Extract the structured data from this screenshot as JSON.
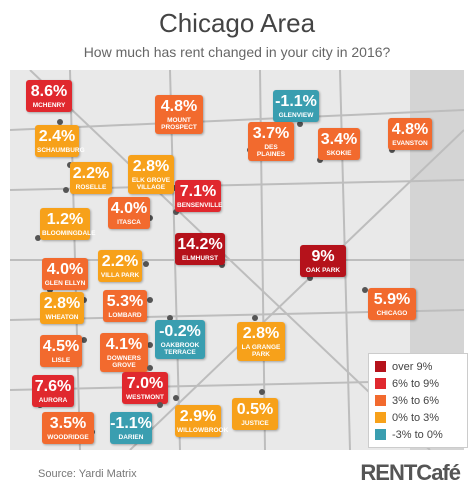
{
  "header": {
    "title": "Chicago Area",
    "subtitle": "How much has rent changed in your city in 2016?"
  },
  "callouts": [
    {
      "value": "8.6%",
      "name": "MCHENRY",
      "color": "#e0282e"
    },
    {
      "value": "4.8%",
      "name": "MOUNT PROSPECT",
      "color": "#f26a2e"
    },
    {
      "value": "-1.1%",
      "name": "GLENVIEW",
      "color": "#3a9eb0"
    },
    {
      "value": "2.4%",
      "name": "SCHAUMBURG",
      "color": "#f7a11a"
    },
    {
      "value": "3.7%",
      "name": "DES PLAINES",
      "color": "#f26a2e"
    },
    {
      "value": "3.4%",
      "name": "SKOKIE",
      "color": "#f26a2e"
    },
    {
      "value": "4.8%",
      "name": "EVANSTON",
      "color": "#f26a2e"
    },
    {
      "value": "2.2%",
      "name": "ROSELLE",
      "color": "#f7a11a"
    },
    {
      "value": "2.8%",
      "name": "ELK GROVE VILLAGE",
      "color": "#f7a11a"
    },
    {
      "value": "7.1%",
      "name": "BENSENVILLE",
      "color": "#e0282e"
    },
    {
      "value": "1.2%",
      "name": "BLOOMINGDALE",
      "color": "#f7a11a"
    },
    {
      "value": "4.0%",
      "name": "ITASCA",
      "color": "#f26a2e"
    },
    {
      "value": "14.2%",
      "name": "ELMHURST",
      "color": "#b5121b"
    },
    {
      "value": "9%",
      "name": "OAK PARK",
      "color": "#b5121b"
    },
    {
      "value": "4.0%",
      "name": "GLEN ELLYN",
      "color": "#f26a2e"
    },
    {
      "value": "2.2%",
      "name": "VILLA PARK",
      "color": "#f7a11a"
    },
    {
      "value": "5.9%",
      "name": "CHICAGO",
      "color": "#f26a2e"
    },
    {
      "value": "2.8%",
      "name": "WHEATON",
      "color": "#f7a11a"
    },
    {
      "value": "5.3%",
      "name": "LOMBARD",
      "color": "#f26a2e"
    },
    {
      "value": "-0.2%",
      "name": "OAKBROOK TERRACE",
      "color": "#3a9eb0"
    },
    {
      "value": "2.8%",
      "name": "LA GRANGE PARK",
      "color": "#f7a11a"
    },
    {
      "value": "4.5%",
      "name": "LISLE",
      "color": "#f26a2e"
    },
    {
      "value": "4.1%",
      "name": "DOWNERS GROVE",
      "color": "#f26a2e"
    },
    {
      "value": "7.6%",
      "name": "AURORA",
      "color": "#e0282e"
    },
    {
      "value": "7.0%",
      "name": "WESTMONT",
      "color": "#e0282e"
    },
    {
      "value": "3.5%",
      "name": "WOODRIDGE",
      "color": "#f26a2e"
    },
    {
      "value": "-1.1%",
      "name": "DARIEN",
      "color": "#3a9eb0"
    },
    {
      "value": "2.9%",
      "name": "WILLOWBROOK",
      "color": "#f7a11a"
    },
    {
      "value": "0.5%",
      "name": "JUSTICE",
      "color": "#f7a11a"
    }
  ],
  "legend": [
    {
      "label": "over 9%",
      "color": "#b5121b"
    },
    {
      "label": "6% to 9%",
      "color": "#e0282e"
    },
    {
      "label": "3% to 6%",
      "color": "#f26a2e"
    },
    {
      "label": "0% to 3%",
      "color": "#f7a11a"
    },
    {
      "label": "-3% to 0%",
      "color": "#3a9eb0"
    }
  ],
  "footer": {
    "source": "Source: Yardi Matrix",
    "logo": "RENTCafé"
  }
}
